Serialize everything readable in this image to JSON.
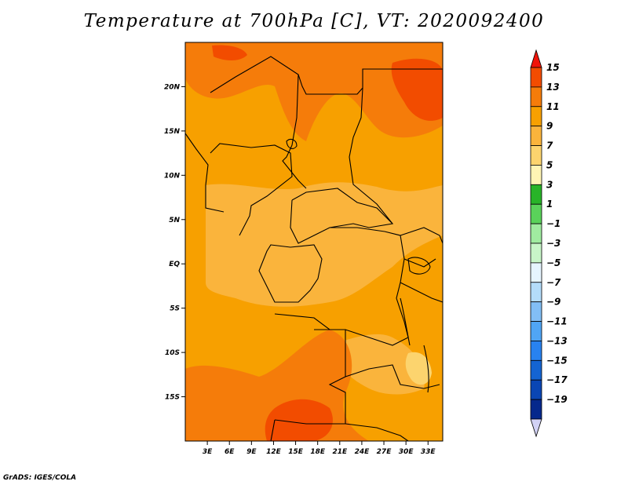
{
  "title": "Temperature at 700hPa [C], VT: 2020092400",
  "credit": "GrADS: IGES/COLA",
  "map": {
    "lon_range": [
      0,
      35
    ],
    "lat_range": [
      -20,
      25
    ],
    "x_ticks": [
      {
        "lon": 3,
        "label": "3E"
      },
      {
        "lon": 6,
        "label": "6E"
      },
      {
        "lon": 9,
        "label": "9E"
      },
      {
        "lon": 12,
        "label": "12E"
      },
      {
        "lon": 15,
        "label": "15E"
      },
      {
        "lon": 18,
        "label": "18E"
      },
      {
        "lon": 21,
        "label": "21E"
      },
      {
        "lon": 24,
        "label": "24E"
      },
      {
        "lon": 27,
        "label": "27E"
      },
      {
        "lon": 30,
        "label": "30E"
      },
      {
        "lon": 33,
        "label": "33E"
      }
    ],
    "y_ticks": [
      {
        "lat": 20,
        "label": "20N"
      },
      {
        "lat": 15,
        "label": "15N"
      },
      {
        "lat": 10,
        "label": "10N"
      },
      {
        "lat": 5,
        "label": "5N"
      },
      {
        "lat": 0,
        "label": "EQ"
      },
      {
        "lat": -5,
        "label": "5S"
      },
      {
        "lat": -10,
        "label": "10S"
      },
      {
        "lat": -15,
        "label": "15S"
      }
    ]
  },
  "colorbar": {
    "labels": [
      "15",
      "13",
      "11",
      "9",
      "7",
      "5",
      "3",
      "1",
      "−1",
      "−3",
      "−5",
      "−7",
      "−9",
      "−11",
      "−13",
      "−15",
      "−17",
      "−19"
    ],
    "colors": [
      "#f0140a",
      "#f24c00",
      "#f57c0a",
      "#f7a000",
      "#fab43c",
      "#fcd46e",
      "#fff5b4",
      "#28b428",
      "#5ad25a",
      "#a0eba0",
      "#c8f5c8",
      "#e6f5ff",
      "#b4dcfa",
      "#82bef5",
      "#50a5f5",
      "#2882f0",
      "#1464d2",
      "#0a46b4",
      "#05288c",
      "#d2d2f5"
    ]
  }
}
